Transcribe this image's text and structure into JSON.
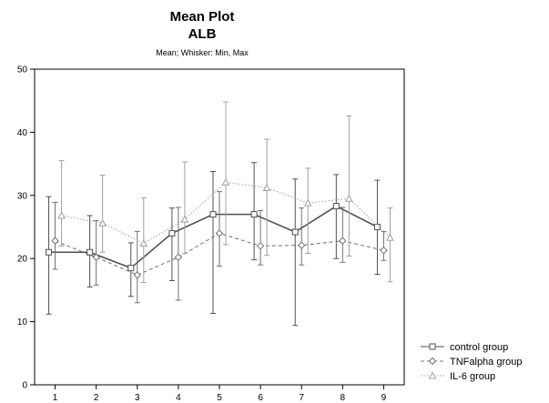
{
  "chart_data": {
    "type": "line",
    "title": "Mean Plot",
    "title2": "ALB",
    "subtitle": "Mean;  Whisker: Min, Max",
    "xlabel": "",
    "ylabel": "",
    "x": [
      1,
      2,
      3,
      4,
      5,
      6,
      7,
      8,
      9
    ],
    "xlim": [
      0.5,
      9.5
    ],
    "ylim": [
      0,
      50
    ],
    "yticks": [
      0,
      10,
      20,
      30,
      40,
      50
    ],
    "grid": false,
    "legend": "bottom-right",
    "series": [
      {
        "name": "control group",
        "marker": "square",
        "line": "solid",
        "color": "#505050",
        "mean": [
          21,
          21,
          18.5,
          24,
          27,
          27,
          24.2,
          28.3,
          25
        ],
        "min": [
          11.2,
          15.5,
          14,
          16.5,
          11.3,
          19.8,
          9.4,
          20,
          17.5
        ],
        "max": [
          29.8,
          26.8,
          22.5,
          28,
          33.8,
          35.2,
          32.6,
          33.3,
          32.4
        ]
      },
      {
        "name": "TNFalpha group",
        "marker": "diamond",
        "line": "dashed",
        "color": "#707070",
        "mean": [
          22.8,
          20.2,
          17.4,
          20.2,
          24,
          22,
          22.1,
          22.8,
          21.3
        ],
        "min": [
          18.3,
          15.8,
          13,
          13.4,
          18.8,
          19,
          19,
          19.4,
          19.7
        ],
        "max": [
          28.9,
          26,
          24.3,
          28.1,
          30.6,
          27.6,
          28,
          28.1,
          24.3
        ]
      },
      {
        "name": "IL-6 group",
        "marker": "triangle",
        "line": "dotted",
        "color": "#a0a0a0",
        "mean": [
          26.8,
          25.6,
          22.4,
          26.2,
          32.1,
          31.2,
          28.8,
          29.5,
          23.3
        ],
        "min": [
          22,
          21,
          16.2,
          20.8,
          22.2,
          20.5,
          20.8,
          20.4,
          16.3
        ],
        "max": [
          35.5,
          33.2,
          29.6,
          35.3,
          44.8,
          38.9,
          34.3,
          42.6,
          28
        ]
      }
    ]
  }
}
